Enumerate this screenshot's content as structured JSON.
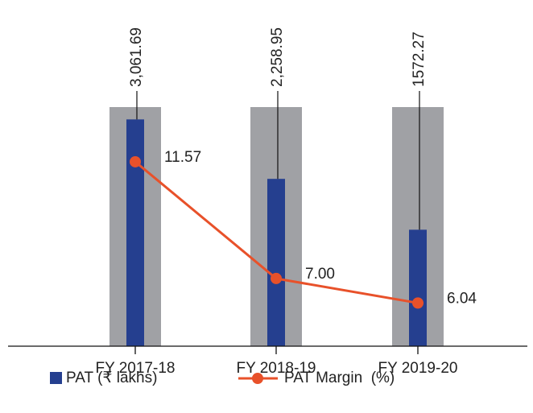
{
  "chart_data": {
    "type": "bar",
    "categories": [
      "FY 2017-18",
      "FY 2018-19",
      "FY 2019-20"
    ],
    "series": [
      {
        "name": "PAT (₹ lakhs)",
        "type": "bar",
        "color": "#253f8f",
        "values": [
          3061.69,
          2258.95,
          1572.27
        ],
        "value_labels": [
          "3,061.69",
          "2,258.95",
          "1572.27"
        ]
      },
      {
        "name": "PAT Margin  (%)",
        "type": "line",
        "axis": "y2",
        "color": "#e8512a",
        "values": [
          11.57,
          7.0,
          6.04
        ],
        "value_labels": [
          "11.57",
          "7.00",
          "6.04"
        ]
      }
    ],
    "ylim": [
      0,
      3500
    ],
    "y2lim": [
      4.35,
      14.5
    ],
    "grid": false
  }
}
